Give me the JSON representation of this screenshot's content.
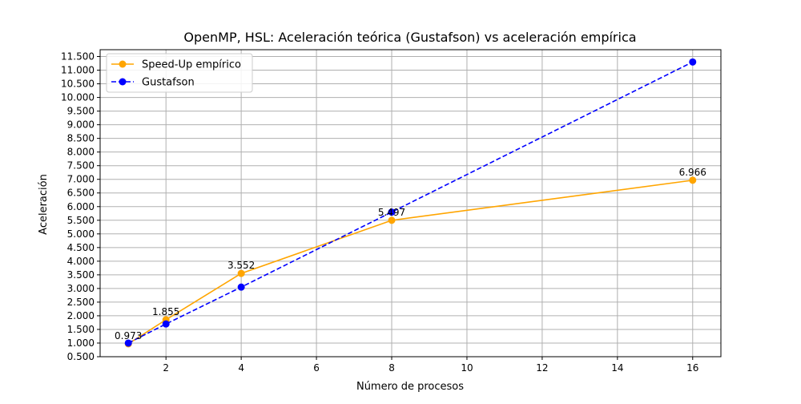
{
  "chart_data": {
    "type": "line",
    "title": "OpenMP, HSL: Aceleración teórica (Gustafson) vs aceleración empírica",
    "xlabel": "Número de procesos",
    "ylabel": "Aceleración",
    "x": [
      1,
      2,
      4,
      8,
      16
    ],
    "xlim": [
      0.25,
      16.75
    ],
    "ylim": [
      0.5,
      11.75
    ],
    "xticks": [
      2,
      4,
      6,
      8,
      10,
      12,
      14,
      16
    ],
    "xtick_labels": [
      "2",
      "4",
      "6",
      "8",
      "10",
      "12",
      "14",
      "16"
    ],
    "yticks": [
      0.5,
      1.0,
      1.5,
      2.0,
      2.5,
      3.0,
      3.5,
      4.0,
      4.5,
      5.0,
      5.5,
      6.0,
      6.5,
      7.0,
      7.5,
      8.0,
      8.5,
      9.0,
      9.5,
      10.0,
      10.5,
      11.0,
      11.5
    ],
    "ytick_labels": [
      "0.500",
      "1.000",
      "1.500",
      "2.000",
      "2.500",
      "3.000",
      "3.500",
      "4.000",
      "4.500",
      "5.000",
      "5.500",
      "6.000",
      "6.500",
      "7.000",
      "7.500",
      "8.000",
      "8.500",
      "9.000",
      "9.500",
      "10.000",
      "10.500",
      "11.000",
      "11.500"
    ],
    "grid": true,
    "legend_position": "top-left",
    "series": [
      {
        "name": "Speed-Up empírico",
        "values": [
          0.973,
          1.855,
          3.552,
          5.497,
          6.966
        ],
        "data_labels": [
          "0.973",
          "1.855",
          "3.552",
          "5.497",
          "6.966"
        ],
        "color": "#ffa500",
        "line_style": "solid",
        "marker": "circle"
      },
      {
        "name": "Gustafson",
        "values": [
          1.0,
          1.7,
          3.05,
          5.8,
          11.3
        ],
        "color": "#0000ff",
        "line_style": "dashed",
        "marker": "circle"
      }
    ]
  }
}
